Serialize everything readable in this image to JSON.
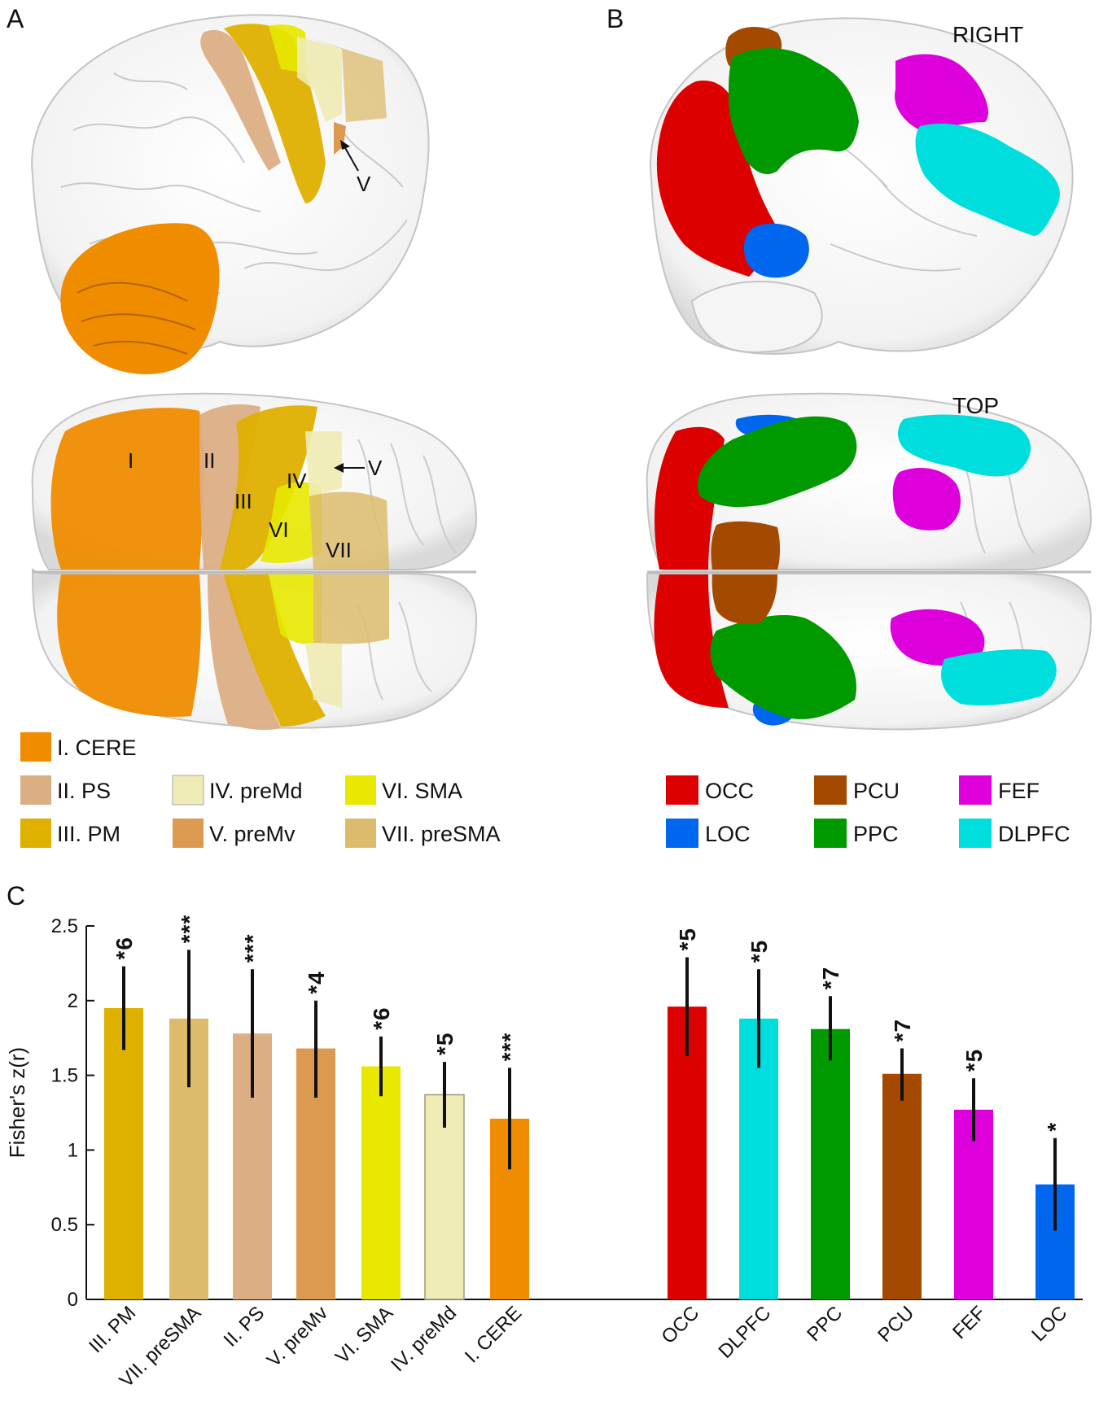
{
  "panels": {
    "a": {
      "letter": "A"
    },
    "b": {
      "letter": "B",
      "view_right": "RIGHT",
      "view_top": "TOP"
    },
    "c": {
      "letter": "C"
    }
  },
  "brain_labels": {
    "lateral_v": "V",
    "top": {
      "I": "I",
      "II": "II",
      "III": "III",
      "IV": "IV",
      "V": "V",
      "VI": "VI",
      "VII": "VII"
    }
  },
  "legend_a": [
    {
      "label": "I. CERE",
      "color": "#ef8c00"
    },
    {
      "label": "II. PS",
      "color": "#dcae84"
    },
    {
      "label": "III. PM",
      "color": "#deb000"
    },
    {
      "label": "IV. preMd",
      "color": "#eeebb4"
    },
    {
      "label": "V. preMv",
      "color": "#dc9a50"
    },
    {
      "label": "VI. SMA",
      "color": "#e8e800"
    },
    {
      "label": "VII. preSMA",
      "color": "#dcbc6c"
    }
  ],
  "legend_b": [
    {
      "label": "OCC",
      "color": "#dd0000"
    },
    {
      "label": "LOC",
      "color": "#0066ee"
    },
    {
      "label": "PCU",
      "color": "#a44a00"
    },
    {
      "label": "PPC",
      "color": "#009a00"
    },
    {
      "label": "FEF",
      "color": "#dd00dd"
    },
    {
      "label": "DLPFC",
      "color": "#00dddd"
    }
  ],
  "chart_data": {
    "type": "bar",
    "ylabel": "Fisher's z(r)",
    "ylim": [
      0,
      2.5
    ],
    "yticks": [
      "0",
      "0.5",
      "1",
      "1.5",
      "2",
      "2.5"
    ],
    "categories": [
      "III. PM",
      "VII. preSMA",
      "II. PS",
      "V. preMv",
      "VI. SMA",
      "IV. preMd",
      "I. CERE",
      "OCC",
      "DLPFC",
      "PPC",
      "PCU",
      "FEF",
      "LOC"
    ],
    "values": [
      1.95,
      1.88,
      1.78,
      1.68,
      1.56,
      1.37,
      1.21,
      1.96,
      1.88,
      1.81,
      1.51,
      1.27,
      0.77
    ],
    "error_low": [
      1.67,
      1.42,
      1.35,
      1.35,
      1.36,
      1.15,
      0.87,
      1.63,
      1.55,
      1.6,
      1.33,
      1.06,
      0.46
    ],
    "error_high": [
      2.23,
      2.34,
      2.21,
      2.0,
      1.76,
      1.59,
      1.55,
      2.29,
      2.21,
      2.03,
      1.68,
      1.48,
      1.08
    ],
    "significance": [
      "*6",
      "***",
      "***",
      "*4",
      "*6",
      "*5",
      "***",
      "*5",
      "*5",
      "*7",
      "*7",
      "*5",
      "*"
    ],
    "colors": [
      "#deb000",
      "#dcbc6c",
      "#dcae84",
      "#dc9a50",
      "#e8e800",
      "#eeebb4",
      "#ef8c00",
      "#dd0000",
      "#00dddd",
      "#009a00",
      "#a44a00",
      "#dd00dd",
      "#0066ee"
    ]
  }
}
